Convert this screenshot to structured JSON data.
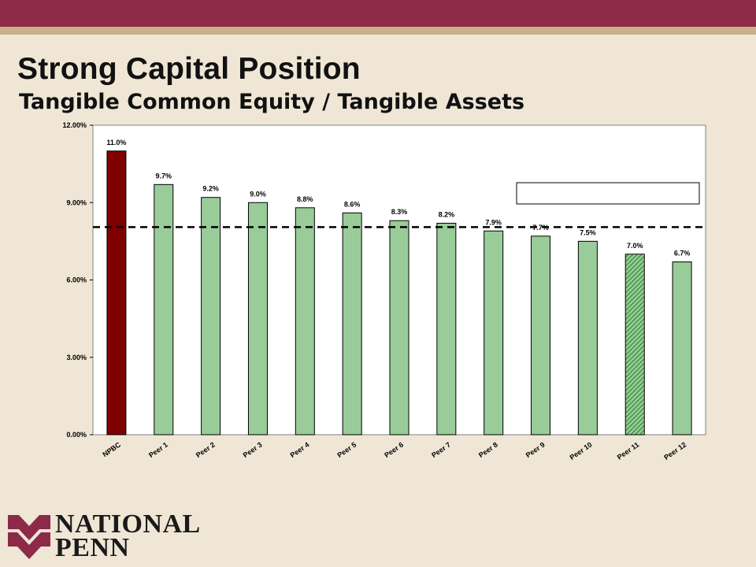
{
  "slide": {
    "title": "Strong Capital Position",
    "subtitle": "Tangible Common Equity / Tangible Assets"
  },
  "logo": {
    "line1": "NATIONAL",
    "line2": "PENN",
    "colors": {
      "mark": "#8c2a48",
      "text": "#1a1a1a"
    }
  },
  "colors": {
    "band": "#8c2a48",
    "strip": "#c8ae8a",
    "background": "#efe6d6",
    "bar_highlight": "#800000",
    "bar_peer": "#99cc99",
    "bar_hatched": "#2e8b2e",
    "plot_background": "#ffffff",
    "reference_line": "#000000"
  },
  "chart_data": {
    "type": "bar",
    "categories": [
      "NPBC",
      "Peer 1",
      "Peer 2",
      "Peer 3",
      "Peer 4",
      "Peer 5",
      "Peer 6",
      "Peer 7",
      "Peer 8",
      "Peer 9",
      "Peer 10",
      "Peer 11",
      "Peer 12"
    ],
    "values": [
      11.0,
      9.7,
      9.2,
      9.0,
      8.8,
      8.6,
      8.3,
      8.2,
      7.9,
      7.7,
      7.5,
      7.0,
      6.7
    ],
    "data_labels": [
      "11.0%",
      "9.7%",
      "9.2%",
      "9.0%",
      "8.8%",
      "8.6%",
      "8.3%",
      "8.2%",
      "7.9%",
      "7.7%",
      "7.5%",
      "7.0%",
      "6.7%"
    ],
    "bar_styles": [
      "highlight",
      "peer",
      "peer",
      "peer",
      "peer",
      "peer",
      "peer",
      "peer",
      "peer",
      "peer",
      "peer",
      "hatched",
      "peer"
    ],
    "ylim": [
      0,
      12
    ],
    "yticks": [
      0,
      3,
      6,
      9,
      12
    ],
    "ytick_labels": [
      "0.00%",
      "3.00%",
      "6.00%",
      "9.00%",
      "12.00%"
    ],
    "reference_line": 8.05,
    "legend_box": {
      "placement": "top-right",
      "text": ""
    },
    "grid": false
  }
}
